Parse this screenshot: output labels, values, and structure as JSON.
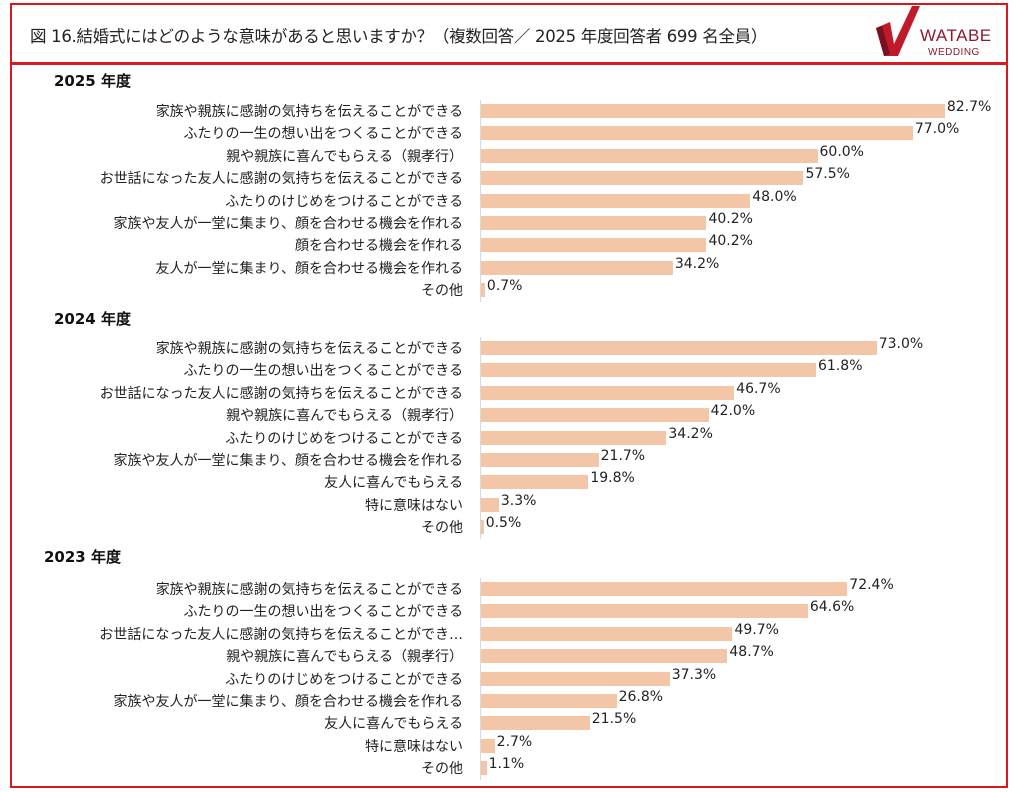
{
  "header": {
    "title": "図 16.結婚式にはどのような意味があると思いますか？（複数回答／ 2025 年度回答者 699 名全員）",
    "logo": {
      "text1": "WATABE",
      "text2": "WEDDING"
    }
  },
  "colors": {
    "border": "#d8191e",
    "bar": "#f4c6a8",
    "logo": "#8c1b2e"
  },
  "chart_data": [
    {
      "type": "bar",
      "orientation": "horizontal",
      "title": "2025 年度",
      "xmax": 83.8,
      "categories": [
        "家族や親族に感謝の気持ちを伝えることができる",
        "ふたりの一生の想い出をつくることができる",
        "親や親族に喜んでもらえる（親孝行）",
        "お世話になった友人に感謝の気持ちを伝えることができる",
        "ふたりのけじめをつけることができる",
        "家族や友人が一堂に集まり、顔を合わせる機会を作れる",
        "顔を合わせる機会を作れる",
        "友人が一堂に集まり、顔を合わせる機会を作れる",
        "その他"
      ],
      "values": [
        82.7,
        77.0,
        60.0,
        57.5,
        48.0,
        40.2,
        40.2,
        34.2,
        0.7
      ],
      "labels": [
        "82.7%",
        "77.0%",
        "60.0%",
        "57.5%",
        "48.0%",
        "40.2%",
        "40.2%",
        "34.2%",
        "0.7%"
      ]
    },
    {
      "type": "bar",
      "orientation": "horizontal",
      "title": "2024 年度",
      "xmax": 86.7,
      "categories": [
        "家族や親族に感謝の気持ちを伝えることができる",
        "ふたりの一生の想い出をつくることができる",
        "お世話になった友人に感謝の気持ちを伝えることができる",
        "親や親族に喜んでもらえる（親孝行）",
        "ふたりのけじめをつけることができる",
        "家族や友人が一堂に集まり、顔を合わせる機会を作れる",
        "友人に喜んでもらえる",
        "特に意味はない",
        "その他"
      ],
      "values": [
        73.0,
        61.8,
        46.7,
        42.0,
        34.2,
        21.7,
        19.8,
        3.3,
        0.5
      ],
      "labels": [
        "73.0%",
        "61.8%",
        "46.7%",
        "42.0%",
        "34.2%",
        "21.7%",
        "19.8%",
        "3.3%",
        "0.5%"
      ]
    },
    {
      "type": "bar",
      "orientation": "horizontal",
      "title": "2023 年度",
      "xmax": 92.9,
      "categories": [
        "家族や親族に感謝の気持ちを伝えることができる",
        "ふたりの一生の想い出をつくることができる",
        "お世話になった友人に感謝の気持ちを伝えることができ…",
        "親や親族に喜んでもらえる（親孝行）",
        "ふたりのけじめをつけることができる",
        "家族や友人が一堂に集まり、顔を合わせる機会を作れる",
        "友人に喜んでもらえる",
        "特に意味はない",
        "その他"
      ],
      "values": [
        72.4,
        64.6,
        49.7,
        48.7,
        37.3,
        26.8,
        21.5,
        2.7,
        1.1
      ],
      "labels": [
        "72.4%",
        "64.6%",
        "49.7%",
        "48.7%",
        "37.3%",
        "26.8%",
        "21.5%",
        "2.7%",
        "1.1%"
      ]
    }
  ]
}
